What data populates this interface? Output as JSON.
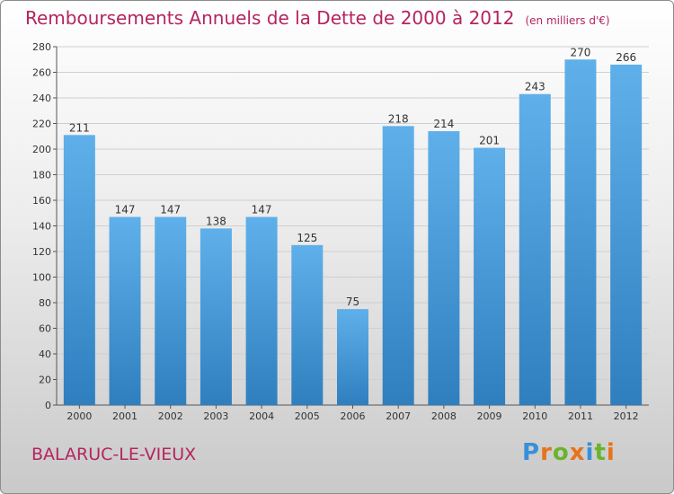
{
  "title": "Remboursements Annuels de la Dette de 2000 à 2012",
  "unit": "(en milliers d'€)",
  "city": "BALARUC-LE-VIEUX",
  "logo": {
    "letters": [
      "P",
      "r",
      "o",
      "x",
      "i",
      "t",
      "i"
    ],
    "colors": [
      "#3a8fd9",
      "#e8731a",
      "#6ab42d",
      "#e8731a",
      "#3a8fd9",
      "#6ab42d",
      "#e8731a"
    ]
  },
  "colors": {
    "title": "#b5245f",
    "bar_top": "#5fb0ea",
    "bar_bottom": "#2f7fbf"
  },
  "chart_data": {
    "type": "bar",
    "categories": [
      "2000",
      "2001",
      "2002",
      "2003",
      "2004",
      "2005",
      "2006",
      "2007",
      "2008",
      "2009",
      "2010",
      "2011",
      "2012"
    ],
    "values": [
      211,
      147,
      147,
      138,
      147,
      125,
      75,
      218,
      214,
      201,
      243,
      270,
      266
    ],
    "ylim": [
      0,
      280
    ],
    "yticks": [
      0,
      20,
      40,
      60,
      80,
      100,
      120,
      140,
      160,
      180,
      200,
      220,
      240,
      260,
      280
    ],
    "grid": true,
    "data_labels": true
  }
}
